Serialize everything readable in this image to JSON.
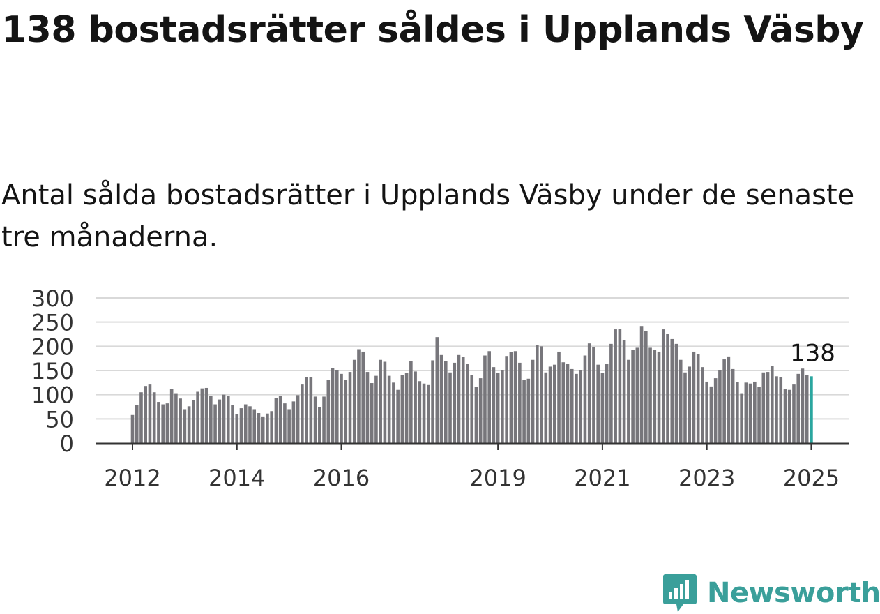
{
  "title": "138 bostadsrätter såldes i Upplands Väsby",
  "subtitle": "Antal sålda bostadsrätter i Upplands Väsby under de senaste tre månaderna.",
  "brand": {
    "name": "Newsworthy",
    "color": "#3a9f9a",
    "icon": "newsworthy-logo-icon"
  },
  "colors": {
    "bar": "#77767b",
    "highlight": "#2aa69f",
    "grid": "#d9d9d9",
    "axis": "#333333"
  },
  "chart_data": {
    "type": "bar",
    "title": "138 bostadsrätter såldes i Upplands Väsby",
    "xlabel": "",
    "ylabel": "",
    "ylim": [
      0,
      300
    ],
    "yticks": [
      0,
      50,
      100,
      150,
      200,
      250,
      300
    ],
    "xtick_labels": [
      "2012",
      "2014",
      "2016",
      "2019",
      "2021",
      "2023",
      "2025"
    ],
    "xtick_indices": [
      0,
      24,
      48,
      84,
      108,
      132,
      156
    ],
    "highlight_label": "138",
    "highlight_index": 156,
    "values": [
      58,
      78,
      105,
      118,
      121,
      105,
      85,
      80,
      82,
      112,
      103,
      92,
      70,
      76,
      88,
      106,
      113,
      114,
      97,
      80,
      90,
      100,
      98,
      79,
      60,
      72,
      80,
      76,
      70,
      62,
      55,
      61,
      66,
      93,
      98,
      82,
      70,
      86,
      99,
      121,
      136,
      136,
      96,
      75,
      96,
      131,
      155,
      151,
      143,
      130,
      147,
      172,
      194,
      189,
      147,
      124,
      139,
      172,
      168,
      139,
      125,
      110,
      141,
      145,
      170,
      148,
      128,
      123,
      120,
      171,
      219,
      182,
      170,
      146,
      166,
      182,
      178,
      163,
      140,
      116,
      134,
      181,
      190,
      157,
      145,
      150,
      180,
      188,
      190,
      166,
      131,
      133,
      172,
      203,
      200,
      146,
      158,
      162,
      189,
      167,
      163,
      153,
      143,
      150,
      181,
      206,
      198,
      162,
      145,
      163,
      205,
      235,
      236,
      213,
      172,
      192,
      197,
      242,
      231,
      197,
      193,
      189,
      235,
      225,
      215,
      205,
      172,
      146,
      158,
      189,
      184,
      157,
      127,
      117,
      134,
      150,
      173,
      179,
      153,
      126,
      103,
      125,
      123,
      127,
      116,
      146,
      147,
      160,
      138,
      136,
      111,
      110,
      121,
      143,
      154,
      140,
      138
    ]
  }
}
